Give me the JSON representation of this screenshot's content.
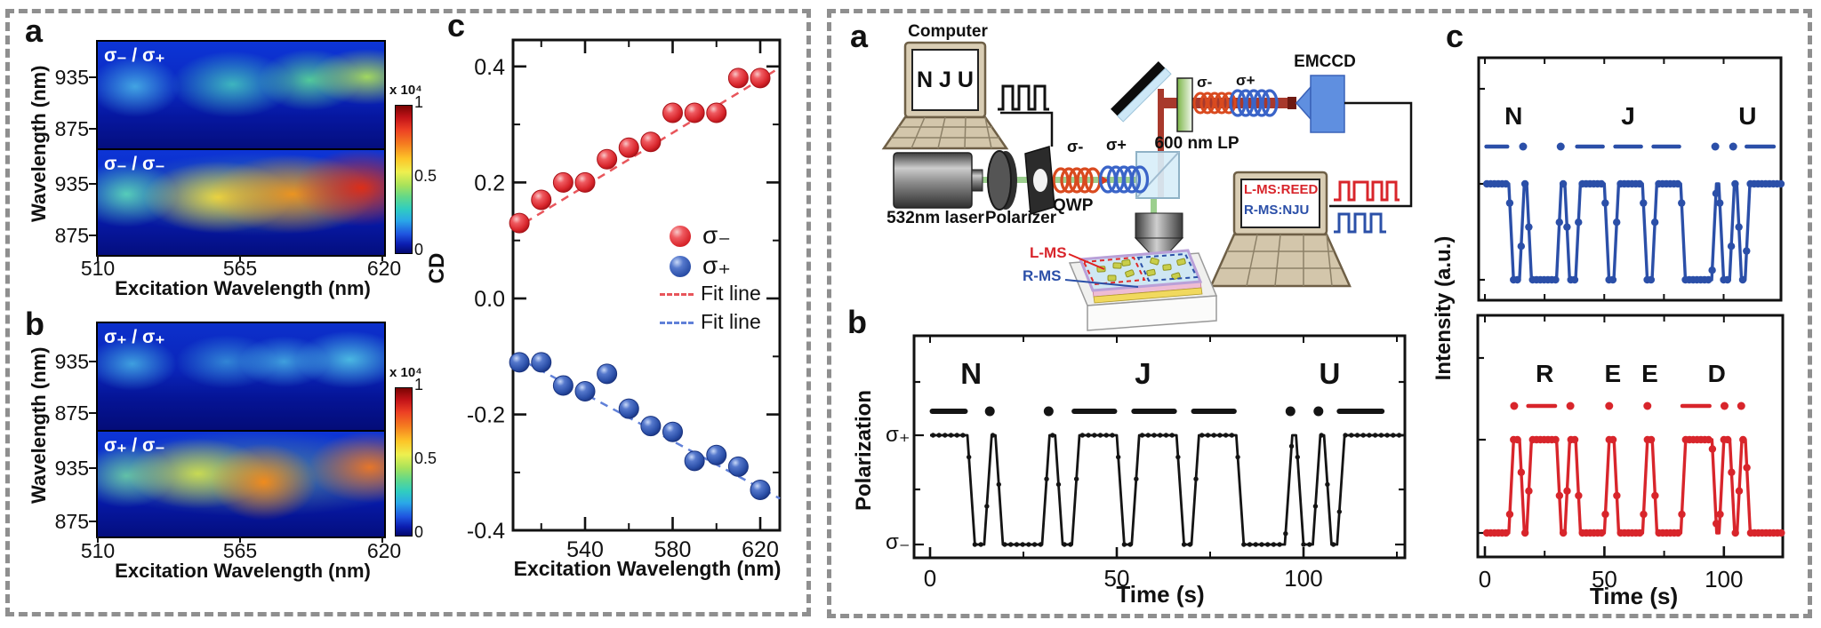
{
  "left": {
    "labels": {
      "a": "a",
      "b": "b",
      "c": "c"
    },
    "axis": {
      "wavelength": "Wavelength (nm)",
      "excitation": "Excitation Wavelength (nm)"
    },
    "yticks": [
      "935",
      "875"
    ],
    "xticks": [
      "510",
      "565",
      "620"
    ],
    "colorbar": {
      "exp": "x 10⁴",
      "t1": "1",
      "t05": "0.5",
      "t0": "0"
    },
    "maps": {
      "a1": "σ₋ / σ₊",
      "a2": "σ₋ / σ₋",
      "b1": "σ₊ / σ₊",
      "b2": "σ₊ / σ₋"
    },
    "cd_ylabel": "CD",
    "legend": {
      "sigma_minus": "σ₋",
      "sigma_plus": "σ₊",
      "fit": "Fit line"
    }
  },
  "right": {
    "labels": {
      "a": "a",
      "b": "b",
      "c": "c"
    },
    "diagram": {
      "computer": "Computer",
      "nju": "N J U",
      "laser": "532nm laser",
      "polarizer": "Polarizer",
      "qwp": "QWP",
      "sigma_minus": "σ-",
      "sigma_plus": "σ+",
      "lp": "600 nm LP",
      "emccd": "EMCCD",
      "screen_line1": "L-MS:REED",
      "screen_line2": "R-MS:NJU",
      "lms": "L-MS",
      "rms": "R-MS"
    },
    "pol": {
      "ylabel": "Polarization",
      "splus": "σ₊",
      "sminus": "σ₋"
    },
    "time_label": "Time (s)",
    "intensity_ylabel": "Intensity (a.u.)"
  },
  "chart_data": [
    {
      "id": "cd_spectrum",
      "type": "scatter",
      "xlabel": "Excitation Wavelength (nm)",
      "ylabel": "CD",
      "xlim": [
        505,
        632
      ],
      "ylim": [
        -0.45,
        0.45
      ],
      "grid": false,
      "legend_position": "inside lower right",
      "x": [
        510,
        520,
        530,
        540,
        550,
        560,
        570,
        580,
        590,
        600,
        610,
        620
      ],
      "series": [
        {
          "name": "σ₋",
          "color": "#d8252b",
          "values": [
            0.13,
            0.17,
            0.2,
            0.2,
            0.24,
            0.26,
            0.27,
            0.32,
            0.32,
            0.32,
            0.38,
            0.38
          ]
        },
        {
          "name": "σ₊",
          "color": "#2b4fa8",
          "values": [
            -0.11,
            -0.11,
            -0.15,
            -0.16,
            -0.13,
            -0.19,
            -0.22,
            -0.23,
            -0.28,
            -0.27,
            -0.29,
            -0.33
          ]
        }
      ],
      "fits": [
        {
          "name": "Fit line",
          "color": "#e8555b",
          "x1": 507,
          "y1": 0.118,
          "x2": 629,
          "y2": 0.398
        },
        {
          "name": "Fit line",
          "color": "#6080d8",
          "x1": 507,
          "y1": -0.098,
          "x2": 629,
          "y2": -0.345
        }
      ],
      "xticks": {
        "major": [
          540,
          580,
          620
        ],
        "minor": [
          520,
          560,
          600
        ],
        "labels": [
          "540",
          "580",
          "620"
        ]
      },
      "yticks": {
        "major": [
          0.4,
          0.2,
          0.0,
          -0.2,
          -0.4
        ],
        "minor": [
          0.3,
          0.1,
          -0.1,
          -0.3
        ],
        "labels": [
          "0.4",
          "0.2",
          "0.0",
          "-0.2",
          "-0.4"
        ]
      }
    },
    {
      "id": "polarization_sequence",
      "type": "line",
      "xlabel": "Time (s)",
      "ylabel": "Polarization",
      "xlim": [
        0,
        127
      ],
      "levels": [
        "σ₊",
        "σ₋"
      ],
      "color": "#141414",
      "message": "NJU",
      "high_segments": [
        [
          0,
          10
        ],
        [
          14.5,
          17.5
        ],
        [
          30,
          33.5
        ],
        [
          38,
          50
        ],
        [
          54,
          66
        ],
        [
          70,
          82
        ],
        [
          95,
          98
        ],
        [
          102.5,
          105.5
        ],
        [
          109,
          127
        ]
      ],
      "letters": [
        {
          "ch": "N",
          "t": 11,
          "morse": "—·"
        },
        {
          "ch": "J",
          "t": 57,
          "morse": "·———"
        },
        {
          "ch": "U",
          "t": 107,
          "morse": "··—"
        }
      ],
      "xticks": {
        "major": [
          0,
          50,
          100
        ],
        "minor": [
          25,
          75,
          125
        ],
        "labels": [
          "0",
          "50",
          "100"
        ]
      }
    },
    {
      "id": "intensity_r_ms",
      "type": "line",
      "ylabel": "Intensity (a.u.)",
      "color": "#2b4fa8",
      "xlim": [
        0,
        124
      ],
      "message": "NJU",
      "high_segments": [
        [
          0,
          10
        ],
        [
          14.5,
          17.5
        ],
        [
          30,
          33.5
        ],
        [
          38,
          50
        ],
        [
          54,
          66
        ],
        [
          70,
          82
        ],
        [
          95,
          98
        ],
        [
          102.5,
          105.5
        ],
        [
          109,
          124
        ]
      ],
      "letters": [
        {
          "ch": "N",
          "t": 12,
          "morse": "—·"
        },
        {
          "ch": "J",
          "t": 60,
          "morse": "·———"
        },
        {
          "ch": "U",
          "t": 110,
          "morse": "··—"
        }
      ],
      "xticks": {
        "major": [],
        "minor": [
          0,
          25,
          50,
          75,
          100
        ],
        "labels": []
      }
    },
    {
      "id": "intensity_l_ms",
      "type": "line",
      "xlabel": "Time (s)",
      "color": "#d8252b",
      "xlim": [
        0,
        124
      ],
      "message": "REED",
      "high_segments": [
        [
          10,
          14.5
        ],
        [
          17.5,
          30
        ],
        [
          33.5,
          38
        ],
        [
          50,
          54
        ],
        [
          66,
          70
        ],
        [
          82,
          95
        ],
        [
          98,
          102.5
        ],
        [
          105.5,
          109
        ]
      ],
      "letters": [
        {
          "ch": "R",
          "t": 25,
          "morse": "·—·"
        },
        {
          "ch": "E",
          "t": 53.5,
          "morse": "·"
        },
        {
          "ch": "E",
          "t": 69,
          "morse": "·"
        },
        {
          "ch": "D",
          "t": 97,
          "morse": "—··"
        }
      ],
      "xticks": {
        "major": [
          0,
          50,
          100
        ],
        "minor": [
          25,
          75
        ],
        "labels": [
          "0",
          "50",
          "100"
        ]
      }
    },
    {
      "id": "pl_map_sminus_probe_splus",
      "type": "heatmap",
      "label": "σ₋ / σ₊",
      "xlabel": "Excitation Wavelength (nm)",
      "ylabel": "Wavelength (nm)",
      "x": [
        510,
        537,
        565,
        592,
        620
      ],
      "y": [
        960,
        935,
        905,
        875
      ],
      "scale": "x 10⁴",
      "zlim": [
        0,
        1
      ],
      "values": [
        [
          0.15,
          0.2,
          0.3,
          0.3,
          0.35
        ],
        [
          0.35,
          0.3,
          0.45,
          0.5,
          0.55
        ],
        [
          0.2,
          0.15,
          0.2,
          0.35,
          0.3
        ],
        [
          0.05,
          0.05,
          0.05,
          0.1,
          0.08
        ]
      ]
    },
    {
      "id": "pl_map_sminus_probe_sminus",
      "type": "heatmap",
      "label": "σ₋ / σ₋",
      "xlabel": "Excitation Wavelength (nm)",
      "ylabel": "Wavelength (nm)",
      "x": [
        510,
        537,
        565,
        592,
        620
      ],
      "y": [
        960,
        935,
        905,
        875
      ],
      "scale": "x 10⁴",
      "zlim": [
        0,
        1
      ],
      "values": [
        [
          0.3,
          0.35,
          0.45,
          0.5,
          0.55
        ],
        [
          0.5,
          0.6,
          0.75,
          0.85,
          0.95
        ],
        [
          0.35,
          0.45,
          0.6,
          0.75,
          0.8
        ],
        [
          0.1,
          0.1,
          0.15,
          0.3,
          0.2
        ]
      ]
    },
    {
      "id": "pl_map_splus_probe_splus",
      "type": "heatmap",
      "label": "σ₊ / σ₊",
      "xlabel": "Excitation Wavelength (nm)",
      "ylabel": "Wavelength (nm)",
      "x": [
        510,
        537,
        565,
        592,
        620
      ],
      "y": [
        960,
        935,
        905,
        875
      ],
      "scale": "x 10⁴",
      "zlim": [
        0,
        1
      ],
      "values": [
        [
          0.1,
          0.12,
          0.18,
          0.18,
          0.22
        ],
        [
          0.38,
          0.28,
          0.32,
          0.42,
          0.45
        ],
        [
          0.15,
          0.1,
          0.15,
          0.2,
          0.18
        ],
        [
          0.04,
          0.04,
          0.05,
          0.05,
          0.05
        ]
      ]
    },
    {
      "id": "pl_map_splus_probe_sminus",
      "type": "heatmap",
      "label": "σ₊ / σ₋",
      "xlabel": "Excitation Wavelength (nm)",
      "ylabel": "Wavelength (nm)",
      "x": [
        510,
        537,
        565,
        592,
        620
      ],
      "y": [
        960,
        935,
        905,
        875
      ],
      "scale": "x 10⁴",
      "zlim": [
        0,
        1
      ],
      "values": [
        [
          0.28,
          0.32,
          0.42,
          0.38,
          0.45
        ],
        [
          0.5,
          0.55,
          0.65,
          0.8,
          0.82
        ],
        [
          0.32,
          0.38,
          0.48,
          0.65,
          0.5
        ],
        [
          0.1,
          0.1,
          0.15,
          0.35,
          0.15
        ]
      ]
    }
  ]
}
